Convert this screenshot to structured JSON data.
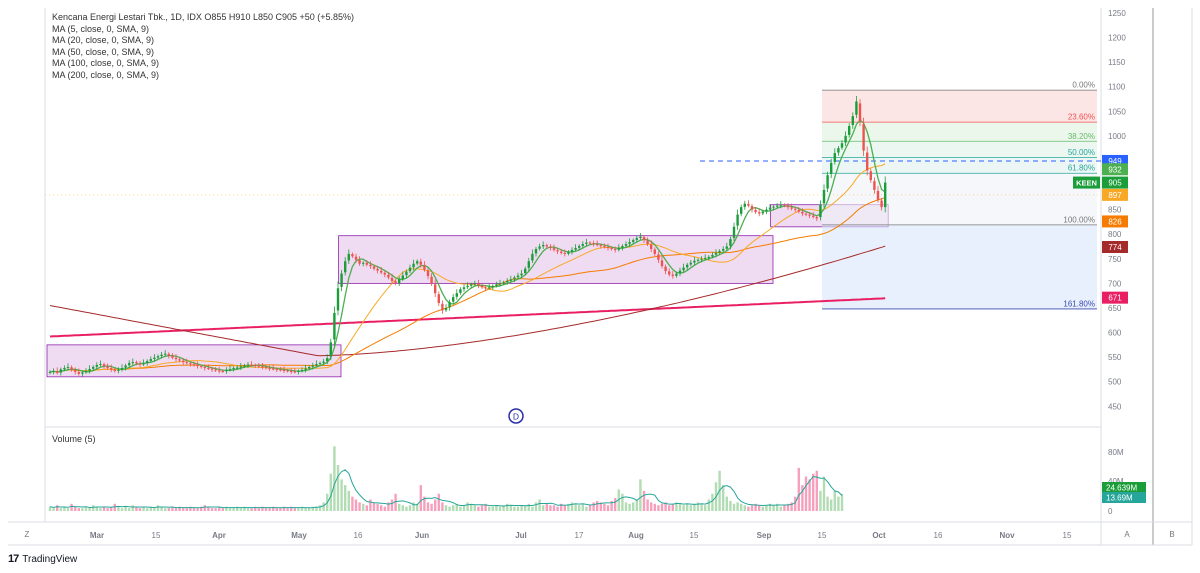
{
  "legend": {
    "title": "Kencana Energi Lestari Tbk., 1D, IDX  O855  H910  L850  C905  +50 (+5.85%)",
    "ma": [
      "MA (5, close, 0, SMA, 9)",
      "MA (20, close, 0, SMA, 9)",
      "MA (50, close, 0, SMA, 9)",
      "MA (100, close, 0, SMA, 9)",
      "MA (200, close, 0, SMA, 9)"
    ]
  },
  "volume_title": "Volume (5)",
  "brand": "TradingView",
  "marker_label": "D",
  "bottom_buttons": {
    "left": "Z",
    "auto": "A",
    "log": "B"
  },
  "colors": {
    "up": "#26a69a",
    "up_strong": "#1b9e3a",
    "down": "#ef5350",
    "ma5": "#4caf50",
    "ma20": "#f9a825",
    "ma50": "#f57c00",
    "ma100": "#a52a2a",
    "ma200": "#e91e63",
    "box_fill": "#e1bee7",
    "box_stroke": "#8e24aa"
  },
  "chart_data": {
    "type": "candlestick",
    "x_ticks": [
      "Mar",
      "15",
      "Apr",
      "May",
      "16",
      "Jun",
      "Jul",
      "17",
      "Aug",
      "15",
      "Sep",
      "15",
      "Oct",
      "16",
      "Nov",
      "15"
    ],
    "y_ticks": [
      1250,
      1200,
      1150,
      1100,
      1050,
      1000,
      950,
      900,
      850,
      800,
      750,
      700,
      650,
      600,
      550,
      500,
      450
    ],
    "ylim": [
      410,
      1260
    ],
    "price_tags": [
      {
        "label": "949",
        "value": 949,
        "color": "#2962ff"
      },
      {
        "label": "932",
        "value": 932,
        "color": "#4caf50"
      },
      {
        "label": "KEEN",
        "value": 905,
        "color": "#1b9e3a"
      },
      {
        "label": "905",
        "value": 905,
        "color": "#1b9e3a"
      },
      {
        "label": "897",
        "value": 880,
        "color": "#f9a825"
      },
      {
        "label": "826",
        "value": 826,
        "color": "#f57c00"
      },
      {
        "label": "774",
        "value": 774,
        "color": "#a52a2a"
      },
      {
        "label": "671",
        "value": 671,
        "color": "#e91e63"
      }
    ],
    "fib_levels": [
      {
        "label": "0.00%",
        "value": 1093,
        "color": "#777777"
      },
      {
        "label": "23.60%",
        "value": 1028,
        "color": "#ef5350"
      },
      {
        "label": "38.20%",
        "value": 989,
        "color": "#66bb6a"
      },
      {
        "label": "50.00%",
        "value": 956,
        "color": "#26a69a"
      },
      {
        "label": "61.80%",
        "value": 924,
        "color": "#26a69a"
      },
      {
        "label": "100.00%",
        "value": 819,
        "color": "#777777"
      },
      {
        "label": "161.80%",
        "value": 648,
        "color": "#3949ab"
      }
    ],
    "dashed_level": 949,
    "boxes": [
      {
        "x0": 0,
        "x1": 80,
        "y0": 510,
        "y1": 575
      },
      {
        "x0": 81,
        "x1": 200,
        "y0": 700,
        "y1": 797
      },
      {
        "x0": 201,
        "x1": 232,
        "y0": 815,
        "y1": 860
      }
    ],
    "closes": [
      520,
      522,
      518,
      525,
      528,
      530,
      524,
      520,
      516,
      519,
      522,
      526,
      530,
      534,
      536,
      532,
      528,
      525,
      522,
      524,
      528,
      533,
      538,
      540,
      537,
      535,
      538,
      542,
      546,
      549,
      552,
      555,
      557,
      553,
      549,
      546,
      543,
      540,
      538,
      536,
      534,
      532,
      530,
      528,
      527,
      525,
      523,
      522,
      521,
      524,
      526,
      528,
      529,
      531,
      533,
      535,
      534,
      533,
      531,
      530,
      528,
      527,
      526,
      525,
      524,
      523,
      522,
      521,
      520,
      522,
      524,
      527,
      530,
      533,
      536,
      538,
      541,
      548,
      580,
      640,
      690,
      720,
      745,
      760,
      755,
      748,
      740,
      742,
      738,
      735,
      730,
      726,
      722,
      718,
      712,
      705,
      700,
      708,
      716,
      724,
      732,
      740,
      745,
      738,
      728,
      715,
      700,
      680,
      660,
      645,
      650,
      662,
      672,
      680,
      688,
      692,
      695,
      698,
      700,
      696,
      692,
      690,
      692,
      695,
      698,
      700,
      702,
      705,
      708,
      712,
      716,
      720,
      730,
      745,
      760,
      770,
      775,
      778,
      775,
      772,
      768,
      765,
      762,
      760,
      764,
      768,
      772,
      776,
      780,
      783,
      782,
      780,
      778,
      776,
      774,
      772,
      770,
      768,
      772,
      776,
      780,
      784,
      788,
      792,
      795,
      788,
      780,
      770,
      760,
      748,
      735,
      725,
      718,
      715,
      720,
      726,
      732,
      738,
      742,
      746,
      748,
      750,
      752,
      754,
      758,
      762,
      766,
      770,
      775,
      790,
      815,
      840,
      855,
      862,
      858,
      850,
      845,
      842,
      846,
      850,
      854,
      856,
      858,
      860,
      858,
      855,
      852,
      850,
      846,
      842,
      840,
      838,
      835,
      832,
      860,
      890,
      920,
      945,
      965,
      975,
      985,
      1000,
      1020,
      1040,
      1070,
      1030,
      970,
      930,
      910,
      890,
      870,
      855,
      905
    ],
    "volumes": [
      3,
      2,
      4,
      2,
      3,
      2,
      5,
      3,
      2,
      2,
      3,
      2,
      4,
      3,
      2,
      3,
      2,
      3,
      5,
      3,
      2,
      3,
      2,
      4,
      3,
      2,
      3,
      2,
      3,
      2,
      4,
      3,
      2,
      2,
      3,
      2,
      3,
      2,
      2,
      3,
      2,
      2,
      3,
      4,
      3,
      2,
      2,
      3,
      2,
      3,
      2,
      2,
      3,
      2,
      3,
      2,
      2,
      3,
      2,
      3,
      2,
      2,
      3,
      2,
      2,
      3,
      2,
      3,
      2,
      2,
      3,
      2,
      2,
      3,
      3,
      4,
      6,
      12,
      26,
      45,
      32,
      22,
      18,
      14,
      10,
      8,
      6,
      5,
      4,
      8,
      6,
      5,
      4,
      3,
      6,
      8,
      12,
      5,
      4,
      3,
      4,
      6,
      5,
      18,
      10,
      6,
      5,
      8,
      12,
      6,
      4,
      3,
      4,
      5,
      3,
      4,
      6,
      5,
      4,
      3,
      4,
      5,
      3,
      3,
      4,
      3,
      4,
      5,
      4,
      3,
      3,
      4,
      4,
      5,
      3,
      6,
      8,
      4,
      5,
      4,
      4,
      3,
      5,
      4,
      5,
      6,
      5,
      4,
      5,
      3,
      4,
      6,
      7,
      6,
      5,
      4,
      7,
      9,
      15,
      12,
      6,
      5,
      6,
      8,
      22,
      14,
      8,
      6,
      5,
      4,
      5,
      6,
      4,
      5,
      6,
      5,
      4,
      5,
      4,
      5,
      6,
      5,
      4,
      8,
      12,
      20,
      28,
      18,
      10,
      7,
      5,
      6,
      5,
      4,
      3,
      4,
      5,
      4,
      3,
      4,
      5,
      4,
      5,
      3,
      4,
      5,
      6,
      10,
      30,
      18,
      24,
      22,
      26,
      28,
      14,
      24,
      10,
      8,
      14,
      10,
      12
    ]
  }
}
